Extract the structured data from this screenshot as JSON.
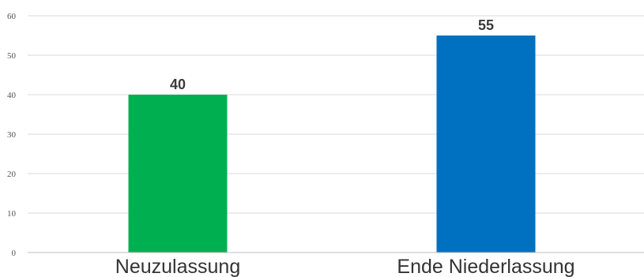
{
  "chart_data": {
    "type": "bar",
    "categories": [
      "Neuzulassung",
      "Ende Niederlassung"
    ],
    "values": [
      40,
      55
    ],
    "colors": [
      "#00b050",
      "#0070c0"
    ],
    "data_labels": [
      "40",
      "55"
    ],
    "yticks": [
      "0",
      "10",
      "20",
      "30",
      "40",
      "50",
      "60"
    ],
    "ylim": [
      0,
      60
    ],
    "grid": true,
    "legend": "none",
    "title": "",
    "xlabel": "",
    "ylabel": ""
  }
}
